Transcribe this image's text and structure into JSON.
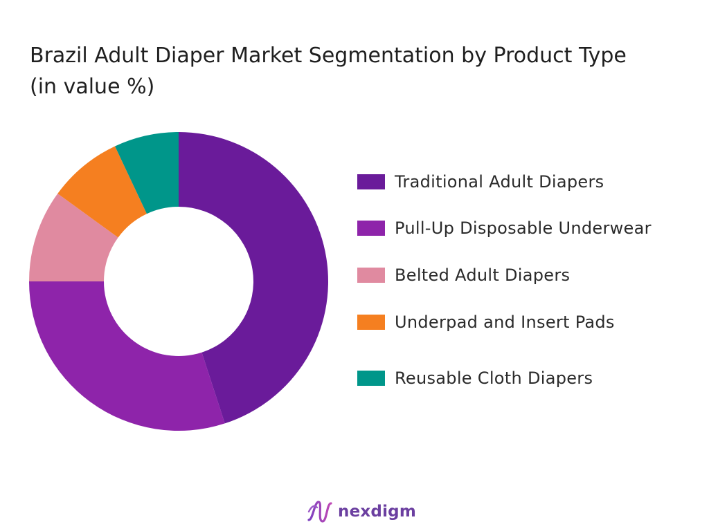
{
  "chart_data": {
    "type": "pie",
    "title": "Brazil Adult Diaper Market Segmentation by Product Type (in value %)",
    "categories": [
      "Traditional Adult Diapers",
      "Pull-Up Disposable Underwear",
      "Belted Adult Diapers",
      "Underpad and Insert Pads",
      "Reusable Cloth Diapers"
    ],
    "values": [
      45,
      30,
      10,
      8,
      7
    ],
    "colors": [
      "#6a1b9a",
      "#8e24aa",
      "#e08aa0",
      "#f57f20",
      "#00968a"
    ],
    "donut": true,
    "legend_position": "right"
  },
  "branding": {
    "logo_text": "nexdigm"
  }
}
